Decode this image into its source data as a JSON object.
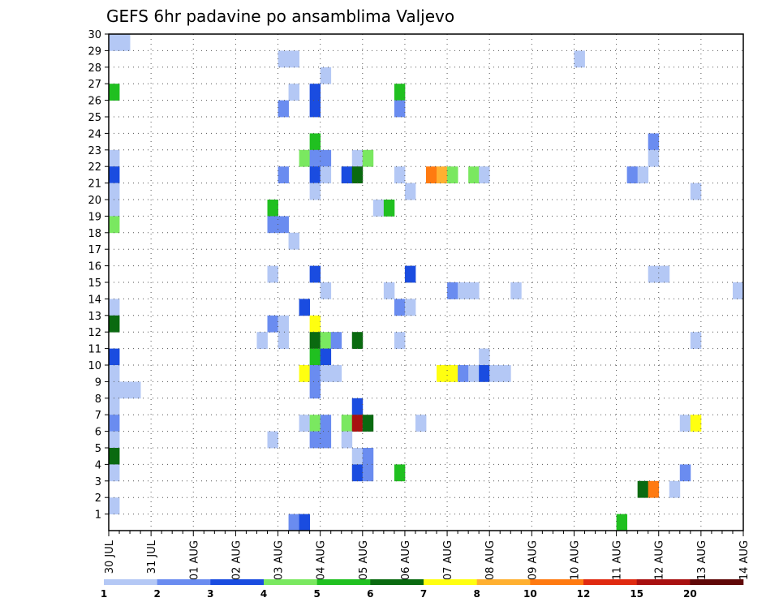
{
  "chart_data": {
    "type": "heatmap",
    "title": "GEFS 6hr padavine po ansamblima Valjevo",
    "xlabel": "",
    "ylabel": "",
    "x_tick_labels": [
      "30 JUL",
      "31 JUL",
      "01 AUG",
      "02 AUG",
      "03 AUG",
      "04 AUG",
      "05 AUG",
      "06 AUG",
      "07 AUG",
      "08 AUG",
      "09 AUG",
      "10 AUG",
      "11 AUG",
      "12 AUG",
      "13 AUG",
      "14 AUG"
    ],
    "x_range_days": [
      0,
      15
    ],
    "time_step_hours": 6,
    "y_tick_labels": [
      "1",
      "2",
      "3",
      "4",
      "5",
      "6",
      "7",
      "8",
      "9",
      "10",
      "11",
      "12",
      "13",
      "14",
      "15",
      "16",
      "17",
      "18",
      "19",
      "20",
      "21",
      "22",
      "23",
      "24",
      "25",
      "26",
      "27",
      "28",
      "29",
      "30"
    ],
    "y_range": [
      0,
      30
    ],
    "grid": true,
    "legend_placement": "bottom",
    "legend": {
      "labels": [
        "1",
        "2",
        "3",
        "4",
        "5",
        "6",
        "7",
        "8",
        "10",
        "12",
        "15",
        "20"
      ],
      "colors": [
        "#b4c8f5",
        "#6a8cf0",
        "#1a4ce0",
        "#7ae860",
        "#20c020",
        "#0a6a10",
        "#ffff10",
        "#ffb030",
        "#ff7a10",
        "#e02a10",
        "#a81010",
        "#600808"
      ]
    },
    "cells": [
      {
        "m": 30,
        "t": 0,
        "v": 1
      },
      {
        "m": 30,
        "t": 1,
        "v": 1
      },
      {
        "m": 29,
        "t": 16,
        "v": 1
      },
      {
        "m": 29,
        "t": 17,
        "v": 1
      },
      {
        "m": 29,
        "t": 44,
        "v": 1
      },
      {
        "m": 28,
        "t": 20,
        "v": 1
      },
      {
        "m": 27,
        "t": 0,
        "v": 5
      },
      {
        "m": 27,
        "t": 17,
        "v": 1
      },
      {
        "m": 27,
        "t": 19,
        "v": 3
      },
      {
        "m": 27,
        "t": 27,
        "v": 5
      },
      {
        "m": 26,
        "t": 16,
        "v": 2
      },
      {
        "m": 26,
        "t": 19,
        "v": 3
      },
      {
        "m": 26,
        "t": 27,
        "v": 2
      },
      {
        "m": 24,
        "t": 19,
        "v": 5
      },
      {
        "m": 24,
        "t": 51,
        "v": 2
      },
      {
        "m": 23,
        "t": 0,
        "v": 1
      },
      {
        "m": 23,
        "t": 18,
        "v": 4
      },
      {
        "m": 23,
        "t": 19,
        "v": 2
      },
      {
        "m": 23,
        "t": 20,
        "v": 2
      },
      {
        "m": 23,
        "t": 23,
        "v": 1
      },
      {
        "m": 23,
        "t": 24,
        "v": 4
      },
      {
        "m": 23,
        "t": 51,
        "v": 1
      },
      {
        "m": 22,
        "t": 0,
        "v": 3
      },
      {
        "m": 22,
        "t": 16,
        "v": 2
      },
      {
        "m": 22,
        "t": 19,
        "v": 3
      },
      {
        "m": 22,
        "t": 20,
        "v": 1
      },
      {
        "m": 22,
        "t": 22,
        "v": 3
      },
      {
        "m": 22,
        "t": 23,
        "v": 6
      },
      {
        "m": 22,
        "t": 27,
        "v": 1
      },
      {
        "m": 22,
        "t": 30,
        "v": 10
      },
      {
        "m": 22,
        "t": 31,
        "v": 8
      },
      {
        "m": 22,
        "t": 32,
        "v": 4
      },
      {
        "m": 22,
        "t": 34,
        "v": 4
      },
      {
        "m": 22,
        "t": 35,
        "v": 1
      },
      {
        "m": 22,
        "t": 49,
        "v": 2
      },
      {
        "m": 22,
        "t": 50,
        "v": 1
      },
      {
        "m": 21,
        "t": 0,
        "v": 1
      },
      {
        "m": 21,
        "t": 19,
        "v": 1
      },
      {
        "m": 21,
        "t": 28,
        "v": 1
      },
      {
        "m": 21,
        "t": 55,
        "v": 1
      },
      {
        "m": 20,
        "t": 0,
        "v": 1
      },
      {
        "m": 20,
        "t": 15,
        "v": 5
      },
      {
        "m": 20,
        "t": 25,
        "v": 1
      },
      {
        "m": 20,
        "t": 26,
        "v": 5
      },
      {
        "m": 19,
        "t": 0,
        "v": 4
      },
      {
        "m": 19,
        "t": 15,
        "v": 2
      },
      {
        "m": 19,
        "t": 16,
        "v": 2
      },
      {
        "m": 18,
        "t": 17,
        "v": 1
      },
      {
        "m": 16,
        "t": 15,
        "v": 1
      },
      {
        "m": 16,
        "t": 19,
        "v": 3
      },
      {
        "m": 16,
        "t": 28,
        "v": 3
      },
      {
        "m": 16,
        "t": 51,
        "v": 1
      },
      {
        "m": 16,
        "t": 52,
        "v": 1
      },
      {
        "m": 15,
        "t": 20,
        "v": 1
      },
      {
        "m": 15,
        "t": 26,
        "v": 1
      },
      {
        "m": 15,
        "t": 32,
        "v": 2
      },
      {
        "m": 15,
        "t": 33,
        "v": 1
      },
      {
        "m": 15,
        "t": 34,
        "v": 1
      },
      {
        "m": 15,
        "t": 38,
        "v": 1
      },
      {
        "m": 15,
        "t": 59,
        "v": 1
      },
      {
        "m": 14,
        "t": 0,
        "v": 1
      },
      {
        "m": 14,
        "t": 18,
        "v": 3
      },
      {
        "m": 14,
        "t": 27,
        "v": 2
      },
      {
        "m": 14,
        "t": 28,
        "v": 1
      },
      {
        "m": 13,
        "t": 15,
        "v": 2
      },
      {
        "m": 13,
        "t": 16,
        "v": 1
      },
      {
        "m": 13,
        "t": 0,
        "v": 6
      },
      {
        "m": 13,
        "t": 19,
        "v": 7
      },
      {
        "m": 12,
        "t": 14,
        "v": 1
      },
      {
        "m": 12,
        "t": 16,
        "v": 1
      },
      {
        "m": 12,
        "t": 19,
        "v": 6
      },
      {
        "m": 12,
        "t": 20,
        "v": 4
      },
      {
        "m": 12,
        "t": 21,
        "v": 2
      },
      {
        "m": 12,
        "t": 23,
        "v": 6
      },
      {
        "m": 12,
        "t": 27,
        "v": 1
      },
      {
        "m": 12,
        "t": 55,
        "v": 1
      },
      {
        "m": 11,
        "t": 0,
        "v": 3
      },
      {
        "m": 11,
        "t": 19,
        "v": 5
      },
      {
        "m": 11,
        "t": 20,
        "v": 3
      },
      {
        "m": 11,
        "t": 35,
        "v": 1
      },
      {
        "m": 10,
        "t": 0,
        "v": 1
      },
      {
        "m": 10,
        "t": 18,
        "v": 7
      },
      {
        "m": 10,
        "t": 19,
        "v": 2
      },
      {
        "m": 10,
        "t": 20,
        "v": 1
      },
      {
        "m": 10,
        "t": 21,
        "v": 1
      },
      {
        "m": 10,
        "t": 31,
        "v": 7
      },
      {
        "m": 10,
        "t": 32,
        "v": 7
      },
      {
        "m": 10,
        "t": 33,
        "v": 2
      },
      {
        "m": 10,
        "t": 34,
        "v": 1
      },
      {
        "m": 10,
        "t": 35,
        "v": 3
      },
      {
        "m": 10,
        "t": 36,
        "v": 1
      },
      {
        "m": 10,
        "t": 37,
        "v": 1
      },
      {
        "m": 9,
        "t": 0,
        "v": 1
      },
      {
        "m": 9,
        "t": 1,
        "v": 1
      },
      {
        "m": 9,
        "t": 2,
        "v": 1
      },
      {
        "m": 9,
        "t": 19,
        "v": 2
      },
      {
        "m": 8,
        "t": 0,
        "v": 1
      },
      {
        "m": 8,
        "t": 23,
        "v": 3
      },
      {
        "m": 7,
        "t": 0,
        "v": 2
      },
      {
        "m": 7,
        "t": 18,
        "v": 1
      },
      {
        "m": 7,
        "t": 19,
        "v": 4
      },
      {
        "m": 7,
        "t": 20,
        "v": 2
      },
      {
        "m": 7,
        "t": 22,
        "v": 4
      },
      {
        "m": 7,
        "t": 23,
        "v": 15
      },
      {
        "m": 7,
        "t": 24,
        "v": 6
      },
      {
        "m": 7,
        "t": 29,
        "v": 1
      },
      {
        "m": 7,
        "t": 54,
        "v": 1
      },
      {
        "m": 7,
        "t": 55,
        "v": 7
      },
      {
        "m": 6,
        "t": 0,
        "v": 1
      },
      {
        "m": 6,
        "t": 15,
        "v": 1
      },
      {
        "m": 6,
        "t": 19,
        "v": 2
      },
      {
        "m": 6,
        "t": 20,
        "v": 2
      },
      {
        "m": 6,
        "t": 22,
        "v": 1
      },
      {
        "m": 5,
        "t": 0,
        "v": 6
      },
      {
        "m": 5,
        "t": 23,
        "v": 1
      },
      {
        "m": 5,
        "t": 24,
        "v": 2
      },
      {
        "m": 4,
        "t": 0,
        "v": 1
      },
      {
        "m": 4,
        "t": 23,
        "v": 3
      },
      {
        "m": 4,
        "t": 24,
        "v": 2
      },
      {
        "m": 4,
        "t": 27,
        "v": 5
      },
      {
        "m": 4,
        "t": 54,
        "v": 2
      },
      {
        "m": 3,
        "t": 50,
        "v": 6
      },
      {
        "m": 3,
        "t": 51,
        "v": 10
      },
      {
        "m": 3,
        "t": 53,
        "v": 1
      },
      {
        "m": 2,
        "t": 0,
        "v": 1
      },
      {
        "m": 1,
        "t": 17,
        "v": 2
      },
      {
        "m": 1,
        "t": 18,
        "v": 3
      },
      {
        "m": 1,
        "t": 48,
        "v": 5
      }
    ]
  }
}
